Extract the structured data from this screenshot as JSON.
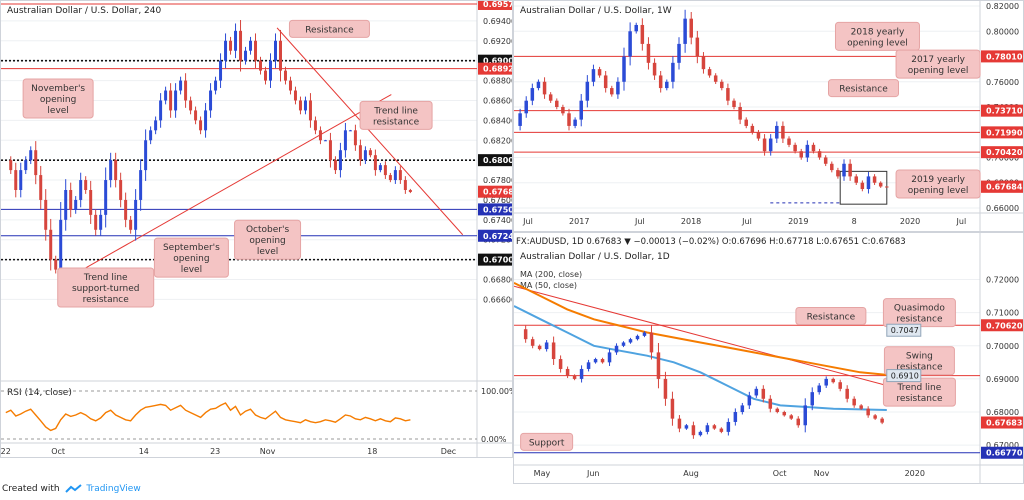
{
  "footer": {
    "created_with": "Created with",
    "brand": "TradingView"
  },
  "charts": [
    {
      "id": "h4",
      "title": "Australian Dollar / U.S. Dollar, 240",
      "ylim": [
        0.658,
        0.696
      ],
      "y_ticks": [
        "0.69400",
        "0.69200",
        "0.69000",
        "0.68800",
        "0.68600",
        "0.68400",
        "0.68200",
        "0.68000",
        "0.67800",
        "0.67600",
        "0.67400",
        "0.67200",
        "0.67000",
        "0.66800",
        "0.66600"
      ],
      "x_labels": [
        {
          "label": "22",
          "x": 0.01
        },
        {
          "label": "Oct",
          "x": 0.12
        },
        {
          "label": "14",
          "x": 0.3
        },
        {
          "label": "23",
          "x": 0.45
        },
        {
          "label": "Nov",
          "x": 0.56
        },
        {
          "label": "18",
          "x": 0.78
        },
        {
          "label": "Dec",
          "x": 0.94
        }
      ],
      "levels": [
        {
          "value": 0.6957,
          "label": "0.69570",
          "color": "#e53935",
          "style": "solid"
        },
        {
          "value": 0.69,
          "label": "0.69000",
          "color": "#111111",
          "style": "dotted"
        },
        {
          "value": 0.6892,
          "label": "0.68920",
          "color": "#e53935",
          "style": "solid"
        },
        {
          "value": 0.68,
          "label": "0.68000",
          "color": "#111111",
          "style": "dotted"
        },
        {
          "value": 0.67505,
          "label": "0.67505",
          "color": "#2431b5",
          "style": "solid"
        },
        {
          "value": 0.6724,
          "label": "0.67240",
          "color": "#2431b5",
          "style": "solid"
        },
        {
          "value": 0.67,
          "label": "0.67000",
          "color": "#111111",
          "style": "dotted"
        }
      ],
      "current": {
        "value": 0.67683,
        "label": "0.67683"
      },
      "trend_lines": [
        {
          "x1": 0.12,
          "y1": 0.6676,
          "x2": 0.82,
          "y2": 0.6866
        },
        {
          "x1": 0.58,
          "y1": 0.6933,
          "x2": 0.97,
          "y2": 0.6725
        }
      ],
      "annotations": [
        {
          "text": "Resistance",
          "x": 0.69,
          "y": 0.6932,
          "w": 80
        },
        {
          "text": "November's\nopening\nlevel",
          "x": 0.12,
          "y": 0.6862,
          "w": 70
        },
        {
          "text": "Trend line\nresistance",
          "x": 0.83,
          "y": 0.6845,
          "w": 72
        },
        {
          "text": "October's\nopening\nlevel",
          "x": 0.56,
          "y": 0.672,
          "w": 66
        },
        {
          "text": "September's\nopening\nlevel",
          "x": 0.4,
          "y": 0.6702,
          "w": 74
        },
        {
          "text": "Trend line\nsupport-turned\nresistance",
          "x": 0.22,
          "y": 0.6672,
          "w": 96
        }
      ],
      "series": {
        "start": 0.68,
        "points": [
          0.68,
          0.679,
          0.677,
          0.679,
          0.68,
          0.681,
          0.6785,
          0.676,
          0.673,
          0.67,
          0.669,
          0.674,
          0.677,
          0.675,
          0.676,
          0.678,
          0.677,
          0.6745,
          0.673,
          0.6745,
          0.678,
          0.68,
          0.678,
          0.676,
          0.674,
          0.673,
          0.676,
          0.679,
          0.682,
          0.683,
          0.684,
          0.686,
          0.687,
          0.685,
          0.687,
          0.688,
          0.686,
          0.685,
          0.684,
          0.683,
          0.685,
          0.687,
          0.688,
          0.69,
          0.692,
          0.691,
          0.693,
          0.69,
          0.691,
          0.692,
          0.69,
          0.689,
          0.688,
          0.69,
          0.692,
          0.689,
          0.688,
          0.687,
          0.686,
          0.685,
          0.686,
          0.684,
          0.683,
          0.682,
          0.682,
          0.68,
          0.679,
          0.681,
          0.683,
          0.683,
          0.6815,
          0.68,
          0.681,
          0.6805,
          0.679,
          0.6795,
          0.6785,
          0.678,
          0.679,
          0.678,
          0.677,
          0.6768
        ]
      },
      "rsi": {
        "label": "RSI (14, close)",
        "ticks": [
          "100.00%",
          "0.00%"
        ],
        "values": [
          55,
          60,
          48,
          52,
          58,
          62,
          50,
          38,
          25,
          18,
          22,
          40,
          52,
          47,
          50,
          55,
          50,
          42,
          38,
          44,
          55,
          60,
          50,
          45,
          40,
          38,
          50,
          60,
          66,
          68,
          70,
          72,
          70,
          60,
          65,
          70,
          60,
          55,
          50,
          45,
          55,
          62,
          64,
          70,
          75,
          60,
          68,
          50,
          58,
          62,
          50,
          45,
          42,
          50,
          58,
          45,
          40,
          38,
          36,
          34,
          40,
          36,
          34,
          36,
          40,
          38,
          35,
          42,
          50,
          48,
          42,
          40,
          45,
          42,
          38,
          42,
          38,
          36,
          44,
          42,
          38,
          40
        ]
      }
    },
    {
      "id": "w1",
      "title": "Australian Dollar / U.S. Dollar, 1W",
      "ylim": [
        0.656,
        0.824
      ],
      "y_ticks": [
        "0.82000",
        "0.80000",
        "0.78000",
        "0.76000",
        "0.74000",
        "0.72000",
        "0.70000",
        "0.68000",
        "0.66000"
      ],
      "x_labels": [
        {
          "label": "Jul",
          "x": 0.03
        },
        {
          "label": "2017",
          "x": 0.14
        },
        {
          "label": "Jul",
          "x": 0.27
        },
        {
          "label": "2018",
          "x": 0.38
        },
        {
          "label": "Jul",
          "x": 0.5
        },
        {
          "label": "2019",
          "x": 0.61
        },
        {
          "label": "8",
          "x": 0.73
        },
        {
          "label": "2020",
          "x": 0.85
        },
        {
          "label": "Jul",
          "x": 0.96
        }
      ],
      "levels": [
        {
          "value": 0.7801,
          "label": "0.78010",
          "color": "#e53935",
          "style": "solid"
        },
        {
          "value": 0.7371,
          "label": "0.73710",
          "color": "#e53935",
          "style": "solid"
        },
        {
          "value": 0.7199,
          "label": "0.71990",
          "color": "#e53935",
          "style": "solid"
        },
        {
          "value": 0.7042,
          "label": "0.70420",
          "color": "#e53935",
          "style": "solid"
        },
        {
          "value": 0.67684,
          "label": "0.67684",
          "color": "#e53935",
          "style": "none"
        }
      ],
      "current": {
        "value": 0.67684,
        "label": "0.67684"
      },
      "box": {
        "x1": 0.7,
        "x2": 0.8,
        "y1": 0.663,
        "y2": 0.689
      },
      "annotations": [
        {
          "text": "2018 yearly\nopening level",
          "x": 0.78,
          "y": 0.796,
          "w": 84
        },
        {
          "text": "2017 yearly\nopening level",
          "x": 0.91,
          "y": 0.774,
          "w": 84
        },
        {
          "text": "Resistance",
          "x": 0.75,
          "y": 0.755,
          "w": 70
        },
        {
          "text": "2019 yearly\nopening level",
          "x": 0.91,
          "y": 0.679,
          "w": 84
        }
      ],
      "series": {
        "points": [
          0.725,
          0.735,
          0.745,
          0.755,
          0.76,
          0.75,
          0.745,
          0.74,
          0.735,
          0.725,
          0.73,
          0.745,
          0.76,
          0.77,
          0.765,
          0.755,
          0.75,
          0.76,
          0.78,
          0.8,
          0.805,
          0.79,
          0.775,
          0.765,
          0.755,
          0.76,
          0.775,
          0.79,
          0.81,
          0.795,
          0.78,
          0.77,
          0.765,
          0.76,
          0.755,
          0.745,
          0.74,
          0.73,
          0.725,
          0.72,
          0.715,
          0.705,
          0.715,
          0.725,
          0.715,
          0.71,
          0.705,
          0.7,
          0.71,
          0.705,
          0.7,
          0.695,
          0.69,
          0.685,
          0.695,
          0.685,
          0.68,
          0.675,
          0.685,
          0.68,
          0.677,
          0.6768
        ]
      }
    },
    {
      "id": "d1",
      "title": "Australian Dollar / U.S. Dollar, 1D",
      "ohlc_line": "FX:AUDUSD, 1D  0.67683 ▼ −0.00013 (−0.02%)  O:0.67696  H:0.67718  L:0.67651  C:0.67683",
      "ma200_label": "MA (200, close)",
      "ma50_label": "MA (50, close)",
      "ylim": [
        0.664,
        0.725
      ],
      "y_ticks": [
        "0.72000",
        "0.71000",
        "0.70000",
        "0.69000",
        "0.68000",
        "0.67000"
      ],
      "x_labels": [
        {
          "label": "May",
          "x": 0.06
        },
        {
          "label": "Jun",
          "x": 0.17
        },
        {
          "label": "Aug",
          "x": 0.38
        },
        {
          "label": "Oct",
          "x": 0.57
        },
        {
          "label": "Nov",
          "x": 0.66
        },
        {
          "label": "2020",
          "x": 0.86
        }
      ],
      "levels": [
        {
          "value": 0.7062,
          "label": "0.70620",
          "color": "#e53935",
          "style": "solid"
        },
        {
          "value": 0.6677,
          "label": "0.66770",
          "color": "#2431b5",
          "style": "solid"
        },
        {
          "value": 0.691,
          "label": "",
          "color": "#e53935",
          "style": "solid"
        }
      ],
      "current": {
        "value": 0.67683,
        "label": "0.67683"
      },
      "tags": [
        {
          "value": 0.7047,
          "label": "0.7047"
        },
        {
          "value": 0.691,
          "label": "0.6910"
        }
      ],
      "annotations": [
        {
          "text": "Resistance",
          "x": 0.68,
          "y": 0.709,
          "w": 70
        },
        {
          "text": "Quasimodo\nresistance",
          "x": 0.87,
          "y": 0.71,
          "w": 72
        },
        {
          "text": "Swing\nresistance",
          "x": 0.87,
          "y": 0.6955,
          "w": 70
        },
        {
          "text": "Trend line\nresistance",
          "x": 0.87,
          "y": 0.686,
          "w": 72
        },
        {
          "text": "Support",
          "x": 0.07,
          "y": 0.671,
          "w": 52
        }
      ],
      "series": {
        "points": [
          0.705,
          0.702,
          0.7,
          0.699,
          0.701,
          0.696,
          0.693,
          0.691,
          0.69,
          0.693,
          0.695,
          0.696,
          0.695,
          0.698,
          0.7,
          0.701,
          0.702,
          0.703,
          0.704,
          0.698,
          0.69,
          0.684,
          0.678,
          0.675,
          0.676,
          0.673,
          0.674,
          0.676,
          0.675,
          0.674,
          0.677,
          0.68,
          0.682,
          0.685,
          0.687,
          0.684,
          0.681,
          0.68,
          0.679,
          0.678,
          0.676,
          0.682,
          0.686,
          0.688,
          0.69,
          0.689,
          0.687,
          0.684,
          0.682,
          0.681,
          0.679,
          0.678,
          0.6768
        ]
      },
      "ma200": [
        0.719,
        0.715,
        0.711,
        0.708,
        0.706,
        0.704,
        0.7025,
        0.701,
        0.6995,
        0.698,
        0.6965,
        0.695,
        0.6935,
        0.692,
        0.6912
      ],
      "ma50": [
        0.712,
        0.708,
        0.704,
        0.7,
        0.6985,
        0.697,
        0.695,
        0.692,
        0.688,
        0.684,
        0.682,
        0.6815,
        0.681,
        0.6808,
        0.6806
      ]
    }
  ]
}
